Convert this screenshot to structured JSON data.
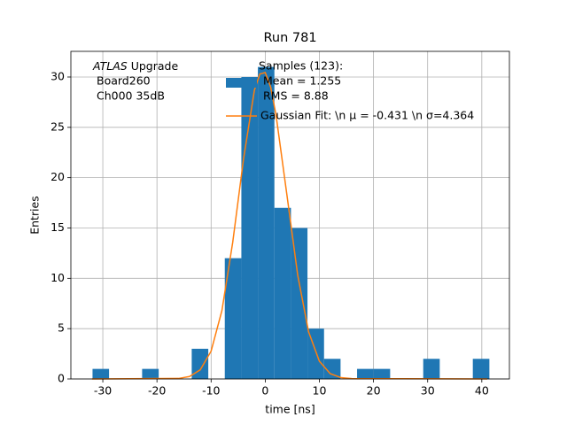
{
  "chart_data": {
    "type": "histogram",
    "title": "Run 781",
    "xlabel": "time [ns]",
    "ylabel": "Entries",
    "bins": [
      -31.9,
      -28.85,
      -25.79,
      -22.74,
      -19.68,
      -16.63,
      -13.58,
      -10.52,
      -7.47,
      -4.41,
      -1.36,
      1.69,
      4.75,
      7.8,
      10.86,
      13.91,
      16.96,
      20.02,
      23.07,
      26.13,
      29.18,
      32.23,
      35.29,
      38.34,
      41.4
    ],
    "series": [
      {
        "name": [
          "Samples (123):",
          "Mean = 1.255",
          "RMS = 8.88"
        ],
        "color": "#1f77b4",
        "values": [
          1,
          0,
          0,
          1,
          0,
          0,
          3,
          0,
          12,
          30,
          31,
          17,
          15,
          5,
          2,
          0,
          1,
          1,
          0,
          0,
          2,
          0,
          0,
          2
        ]
      },
      {
        "name": "Gaussian Fit: \\n μ = -0.431 \\n σ=4.364",
        "color": "#ff7f0e",
        "type": "line",
        "x": [
          -32,
          -16,
          -14,
          -12,
          -10,
          -8,
          -6,
          -4,
          -2,
          -1,
          0,
          1,
          2,
          4,
          6,
          8,
          10,
          12,
          14,
          16,
          41
        ],
        "values": [
          0,
          0.05,
          0.24,
          0.91,
          2.76,
          6.8,
          13.6,
          21.9,
          28.7,
          30.3,
          30.45,
          29.0,
          26.2,
          18.3,
          10.3,
          4.7,
          1.76,
          0.53,
          0.13,
          0.03,
          0
        ]
      }
    ],
    "annotation": {
      "emphasis": "ATLAS",
      "lines": [
        " Upgrade",
        "Board260",
        "Ch000 35dB"
      ]
    },
    "xlim": [
      -35.9,
      45.1
    ],
    "ylim": [
      0,
      32.55
    ],
    "xticks": [
      -30,
      -20,
      -10,
      0,
      10,
      20,
      30,
      40
    ],
    "yticks": [
      0,
      5,
      10,
      15,
      20,
      25,
      30
    ],
    "grid": true
  }
}
